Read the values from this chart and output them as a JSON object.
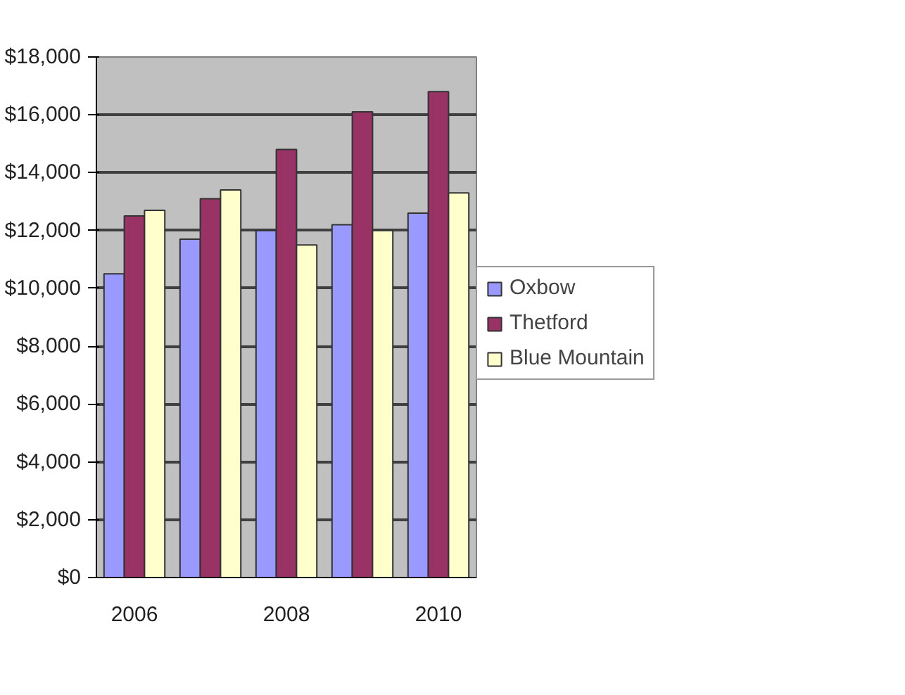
{
  "chart_data": {
    "type": "bar",
    "categories": [
      "2006",
      null,
      "2008",
      null,
      "2010"
    ],
    "series": [
      {
        "name": "Oxbow",
        "color": "#9999ff",
        "values": [
          10500,
          11700,
          12000,
          12200,
          12600
        ]
      },
      {
        "name": "Thetford",
        "color": "#993366",
        "values": [
          12500,
          13100,
          14800,
          16100,
          16800
        ]
      },
      {
        "name": "Blue Mountain",
        "color": "#ffffcc",
        "values": [
          12700,
          13400,
          11500,
          12000,
          13300
        ]
      }
    ],
    "ylim": [
      0,
      18000
    ],
    "yticks": [
      {
        "value": 0,
        "label": "$0"
      },
      {
        "value": 2000,
        "label": "$2,000"
      },
      {
        "value": 4000,
        "label": "$4,000"
      },
      {
        "value": 6000,
        "label": "$6,000"
      },
      {
        "value": 8000,
        "label": "$8,000"
      },
      {
        "value": 10000,
        "label": "$10,000"
      },
      {
        "value": 12000,
        "label": "$12,000"
      },
      {
        "value": 14000,
        "label": "$14,000"
      },
      {
        "value": 16000,
        "label": "$16,000"
      },
      {
        "value": 18000,
        "label": "$18,000"
      }
    ],
    "grid": "y",
    "legend": "right"
  }
}
